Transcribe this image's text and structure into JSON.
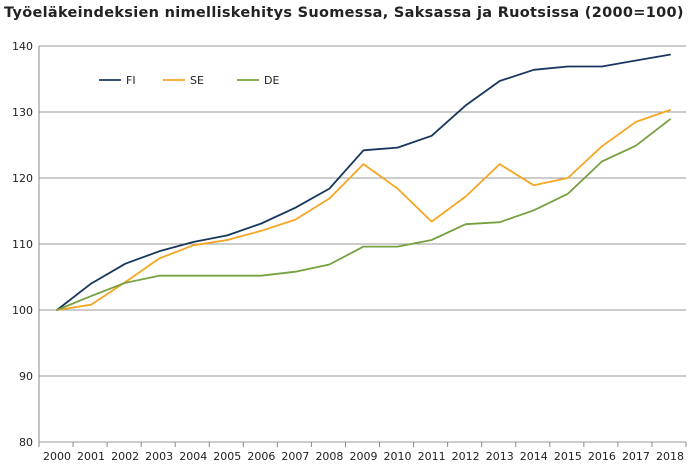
{
  "chart_data": {
    "type": "line",
    "title": "Työeläkeindeksien nimelliskehitys Suomessa, Saksassa ja Ruotsissa (2000=100)",
    "xlabel": "",
    "ylabel": "",
    "x": [
      "2000",
      "2001",
      "2002",
      "2003",
      "2004",
      "2005",
      "2006",
      "2007",
      "2008",
      "2009",
      "2010",
      "2011",
      "2012",
      "2013",
      "2014",
      "2015",
      "2016",
      "2017",
      "2018"
    ],
    "ylim": [
      80,
      140
    ],
    "yticks": [
      80,
      90,
      100,
      110,
      120,
      130,
      140
    ],
    "grid": "horizontal",
    "legend_position": "top-left",
    "series": [
      {
        "name": "FI",
        "color": "#17375e",
        "values": [
          100,
          104.0,
          107.0,
          108.9,
          110.3,
          111.3,
          113.1,
          115.5,
          118.4,
          124.2,
          124.6,
          126.4,
          131.0,
          134.7,
          136.4,
          136.9,
          136.9,
          137.8,
          138.7
        ]
      },
      {
        "name": "SE",
        "color": "#f5a623",
        "values": [
          100,
          100.8,
          104.2,
          107.8,
          109.8,
          110.6,
          112.0,
          113.7,
          116.9,
          122.1,
          118.4,
          113.4,
          117.2,
          122.1,
          118.9,
          120.0,
          124.8,
          128.5,
          130.3
        ]
      },
      {
        "name": "DE",
        "color": "#77a140",
        "values": [
          100,
          102.1,
          104.1,
          105.2,
          105.2,
          105.2,
          105.2,
          105.8,
          106.9,
          109.6,
          109.6,
          110.6,
          113.0,
          113.3,
          115.1,
          117.6,
          122.5,
          124.9,
          128.9
        ]
      }
    ]
  }
}
